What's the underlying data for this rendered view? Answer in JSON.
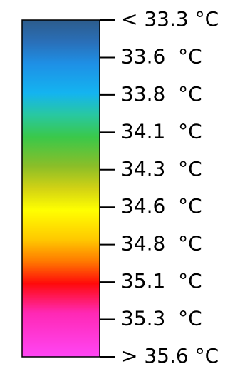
{
  "chart_data": {
    "type": "heatmap",
    "orientation": "vertical",
    "unit": "°C",
    "tick_values": [
      33.3,
      33.6,
      33.8,
      34.1,
      34.3,
      34.6,
      34.8,
      35.1,
      35.3,
      35.6
    ],
    "tick_labels": [
      "< 33.3 °C",
      "33.6  °C",
      "33.8  °C",
      "34.1  °C",
      "34.3  °C",
      "34.6  °C",
      "34.8  °C",
      "35.1  °C",
      "35.3  °C",
      "> 35.6 °C"
    ],
    "color_stops": [
      {
        "value": 33.3,
        "color": "#2c5c8c"
      },
      {
        "value": 33.45,
        "color": "#2a6fb8"
      },
      {
        "value": 33.6,
        "color": "#1e90e6"
      },
      {
        "value": 33.8,
        "color": "#14b4f0"
      },
      {
        "value": 33.95,
        "color": "#28c8a0"
      },
      {
        "value": 34.1,
        "color": "#3ac84a"
      },
      {
        "value": 34.3,
        "color": "#8cbe28"
      },
      {
        "value": 34.45,
        "color": "#d2d214"
      },
      {
        "value": 34.6,
        "color": "#ffff00"
      },
      {
        "value": 34.8,
        "color": "#ffc800"
      },
      {
        "value": 34.95,
        "color": "#ff7800"
      },
      {
        "value": 35.1,
        "color": "#ff0a0a"
      },
      {
        "value": 35.3,
        "color": "#ff28b4"
      },
      {
        "value": 35.6,
        "color": "#ff46f5"
      }
    ]
  }
}
